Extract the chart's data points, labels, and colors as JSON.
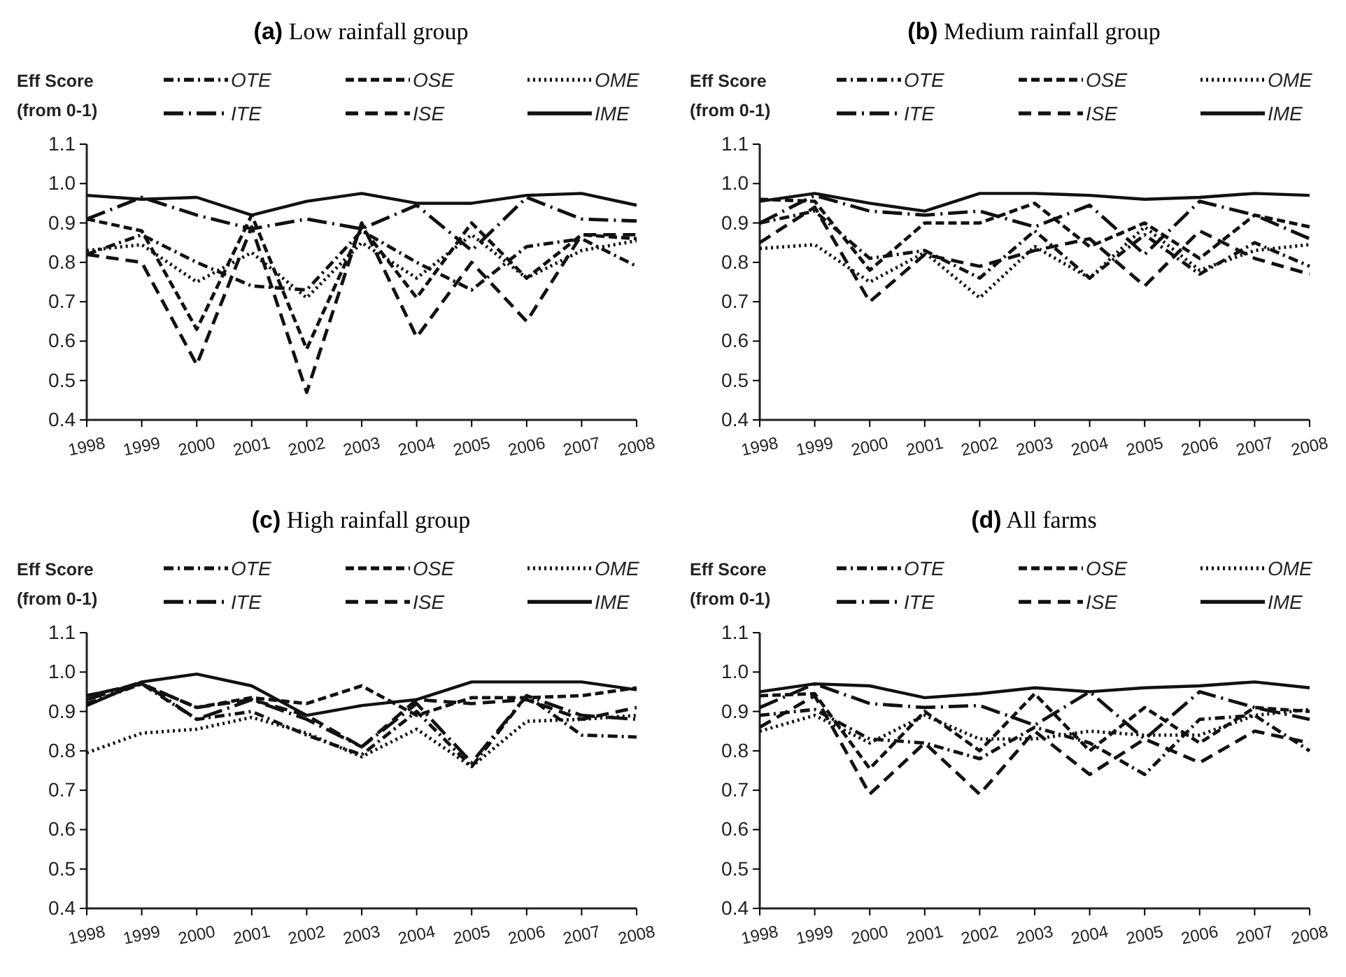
{
  "chart_data": [
    {
      "type": "line",
      "title": "(a) Low rainfall group",
      "ylabel": "Eff Score (from 0-1)",
      "categories": [
        "1998",
        "1999",
        "2000",
        "2001",
        "2002",
        "2003",
        "2004",
        "2005",
        "2006",
        "2007",
        "2008"
      ],
      "ylim": [
        0.4,
        1.1
      ],
      "yticks": [
        {
          "value": 0.4,
          "label": "0.4"
        },
        {
          "value": 0.5,
          "label": "0.5"
        },
        {
          "value": 0.6,
          "label": "0.6"
        },
        {
          "value": 0.7,
          "label": "0.7"
        },
        {
          "value": 0.8,
          "label": "0.8"
        },
        {
          "value": 0.9,
          "label": "0.9"
        },
        {
          "value": 1.0,
          "label": "1.0"
        },
        {
          "value": 1.1,
          "label": "1.1"
        }
      ],
      "grid": false,
      "legend": "top",
      "marker": "none",
      "series": [
        {
          "name": "OTE",
          "color": "#111111",
          "line_style": "dashed",
          "values": [
            0.82,
            0.87,
            0.8,
            0.74,
            0.73,
            0.88,
            0.8,
            0.73,
            0.84,
            0.86,
            0.79
          ]
        },
        {
          "name": "OSE",
          "color": "#111111",
          "line_style": "dashed",
          "values": [
            0.91,
            0.88,
            0.63,
            0.92,
            0.58,
            0.89,
            0.71,
            0.9,
            0.76,
            0.87,
            0.86
          ]
        },
        {
          "name": "OME",
          "color": "#111111",
          "line_style": "dotted",
          "values": [
            0.83,
            0.845,
            0.75,
            0.825,
            0.71,
            0.85,
            0.76,
            0.87,
            0.76,
            0.83,
            0.855
          ]
        },
        {
          "name": "ITE",
          "color": "#111111",
          "line_style": "dashed",
          "values": [
            0.91,
            0.965,
            0.92,
            0.885,
            0.91,
            0.885,
            0.945,
            0.83,
            0.965,
            0.91,
            0.905
          ]
        },
        {
          "name": "ISE",
          "color": "#111111",
          "line_style": "dashed",
          "values": [
            0.82,
            0.8,
            0.54,
            0.89,
            0.47,
            0.9,
            0.61,
            0.8,
            0.65,
            0.87,
            0.87
          ]
        },
        {
          "name": "IME",
          "color": "#111111",
          "line_style": "solid",
          "values": [
            0.97,
            0.96,
            0.965,
            0.92,
            0.955,
            0.975,
            0.95,
            0.95,
            0.97,
            0.975,
            0.945
          ]
        }
      ]
    },
    {
      "type": "line",
      "title": "(b) Medium rainfall group",
      "ylabel": "Eff Score (from 0-1)",
      "categories": [
        "1998",
        "1999",
        "2000",
        "2001",
        "2002",
        "2003",
        "2004",
        "2005",
        "2006",
        "2007",
        "2008"
      ],
      "ylim": [
        0.4,
        1.1
      ],
      "yticks": [
        {
          "value": 0.4,
          "label": "0.4"
        },
        {
          "value": 0.5,
          "label": "0.5"
        },
        {
          "value": 0.6,
          "label": "0.6"
        },
        {
          "value": 0.7,
          "label": "0.7"
        },
        {
          "value": 0.8,
          "label": "0.8"
        },
        {
          "value": 0.9,
          "label": "0.9"
        },
        {
          "value": 1.0,
          "label": "1.0"
        },
        {
          "value": 1.1,
          "label": "1.1"
        }
      ],
      "grid": false,
      "legend": "top",
      "marker": "none",
      "series": [
        {
          "name": "OTE",
          "color": "#111111",
          "line_style": "dashed",
          "values": [
            0.9,
            0.93,
            0.81,
            0.83,
            0.76,
            0.88,
            0.76,
            0.87,
            0.77,
            0.85,
            0.79
          ]
        },
        {
          "name": "OSE",
          "color": "#111111",
          "line_style": "dashed",
          "values": [
            0.96,
            0.955,
            0.78,
            0.9,
            0.9,
            0.95,
            0.84,
            0.9,
            0.81,
            0.92,
            0.89
          ]
        },
        {
          "name": "OME",
          "color": "#111111",
          "line_style": "dotted",
          "values": [
            0.835,
            0.845,
            0.75,
            0.825,
            0.71,
            0.84,
            0.76,
            0.89,
            0.78,
            0.83,
            0.845
          ]
        },
        {
          "name": "ITE",
          "color": "#111111",
          "line_style": "dashed",
          "values": [
            0.9,
            0.97,
            0.93,
            0.92,
            0.93,
            0.89,
            0.945,
            0.82,
            0.955,
            0.92,
            0.86
          ]
        },
        {
          "name": "ISE",
          "color": "#111111",
          "line_style": "dashed",
          "values": [
            0.85,
            0.94,
            0.7,
            0.82,
            0.79,
            0.83,
            0.86,
            0.74,
            0.88,
            0.81,
            0.77
          ]
        },
        {
          "name": "IME",
          "color": "#111111",
          "line_style": "solid",
          "values": [
            0.955,
            0.975,
            0.95,
            0.93,
            0.975,
            0.975,
            0.97,
            0.96,
            0.965,
            0.975,
            0.97
          ]
        }
      ]
    },
    {
      "type": "line",
      "title": "(c) High rainfall group",
      "ylabel": "Eff Score (from 0-1)",
      "categories": [
        "1998",
        "1999",
        "2000",
        "2001",
        "2002",
        "2003",
        "2004",
        "2005",
        "2006",
        "2007",
        "2008"
      ],
      "ylim": [
        0.4,
        1.1
      ],
      "yticks": [
        {
          "value": 0.4,
          "label": "0.4"
        },
        {
          "value": 0.5,
          "label": "0.5"
        },
        {
          "value": 0.6,
          "label": "0.6"
        },
        {
          "value": 0.7,
          "label": "0.7"
        },
        {
          "value": 0.8,
          "label": "0.8"
        },
        {
          "value": 0.9,
          "label": "0.9"
        },
        {
          "value": 1.0,
          "label": "1.0"
        },
        {
          "value": 1.1,
          "label": "1.1"
        }
      ],
      "grid": false,
      "legend": "top",
      "marker": "none",
      "series": [
        {
          "name": "OTE",
          "color": "#111111",
          "line_style": "dashed",
          "values": [
            0.92,
            0.97,
            0.88,
            0.9,
            0.84,
            0.79,
            0.9,
            0.76,
            0.94,
            0.84,
            0.835
          ]
        },
        {
          "name": "OSE",
          "color": "#111111",
          "line_style": "dashed",
          "values": [
            0.94,
            0.97,
            0.91,
            0.935,
            0.92,
            0.965,
            0.89,
            0.935,
            0.935,
            0.94,
            0.96
          ]
        },
        {
          "name": "OME",
          "color": "#111111",
          "line_style": "dotted",
          "values": [
            0.795,
            0.845,
            0.855,
            0.885,
            0.845,
            0.785,
            0.855,
            0.76,
            0.875,
            0.88,
            0.89
          ]
        },
        {
          "name": "ITE",
          "color": "#111111",
          "line_style": "dashed",
          "values": [
            0.93,
            0.975,
            0.88,
            0.93,
            0.88,
            0.81,
            0.92,
            0.77,
            0.94,
            0.89,
            0.88
          ]
        },
        {
          "name": "ISE",
          "color": "#111111",
          "line_style": "dashed",
          "values": [
            0.94,
            0.97,
            0.91,
            0.93,
            0.89,
            0.81,
            0.93,
            0.92,
            0.93,
            0.88,
            0.91
          ]
        },
        {
          "name": "IME",
          "color": "#111111",
          "line_style": "solid",
          "values": [
            0.915,
            0.975,
            0.995,
            0.965,
            0.89,
            0.915,
            0.93,
            0.975,
            0.975,
            0.975,
            0.955
          ]
        }
      ]
    },
    {
      "type": "line",
      "title": "(d) All farms",
      "ylabel": "Eff Score (from 0-1)",
      "categories": [
        "1998",
        "1999",
        "2000",
        "2001",
        "2002",
        "2003",
        "2004",
        "2005",
        "2006",
        "2007",
        "2008"
      ],
      "ylim": [
        0.4,
        1.1
      ],
      "yticks": [
        {
          "value": 0.4,
          "label": "0.4"
        },
        {
          "value": 0.5,
          "label": "0.5"
        },
        {
          "value": 0.6,
          "label": "0.6"
        },
        {
          "value": 0.7,
          "label": "0.7"
        },
        {
          "value": 0.8,
          "label": "0.8"
        },
        {
          "value": 0.9,
          "label": "0.9"
        },
        {
          "value": 1.0,
          "label": "1.0"
        },
        {
          "value": 1.1,
          "label": "1.1"
        }
      ],
      "grid": false,
      "legend": "top",
      "marker": "none",
      "series": [
        {
          "name": "OTE",
          "color": "#111111",
          "line_style": "dashed",
          "values": [
            0.89,
            0.905,
            0.83,
            0.82,
            0.78,
            0.86,
            0.82,
            0.74,
            0.88,
            0.89,
            0.8
          ]
        },
        {
          "name": "OSE",
          "color": "#111111",
          "line_style": "dashed",
          "values": [
            0.94,
            0.945,
            0.755,
            0.9,
            0.8,
            0.945,
            0.8,
            0.91,
            0.82,
            0.91,
            0.9
          ]
        },
        {
          "name": "OME",
          "color": "#111111",
          "line_style": "dotted",
          "values": [
            0.85,
            0.89,
            0.82,
            0.89,
            0.83,
            0.83,
            0.85,
            0.84,
            0.84,
            0.89,
            0.905
          ]
        },
        {
          "name": "ITE",
          "color": "#111111",
          "line_style": "dashed",
          "values": [
            0.91,
            0.97,
            0.92,
            0.91,
            0.915,
            0.865,
            0.95,
            0.83,
            0.95,
            0.91,
            0.88
          ]
        },
        {
          "name": "ISE",
          "color": "#111111",
          "line_style": "dashed",
          "values": [
            0.86,
            0.94,
            0.69,
            0.82,
            0.69,
            0.85,
            0.74,
            0.83,
            0.77,
            0.85,
            0.82
          ]
        },
        {
          "name": "IME",
          "color": "#111111",
          "line_style": "solid",
          "values": [
            0.95,
            0.97,
            0.965,
            0.935,
            0.945,
            0.96,
            0.95,
            0.96,
            0.965,
            0.975,
            0.96
          ]
        }
      ]
    }
  ]
}
